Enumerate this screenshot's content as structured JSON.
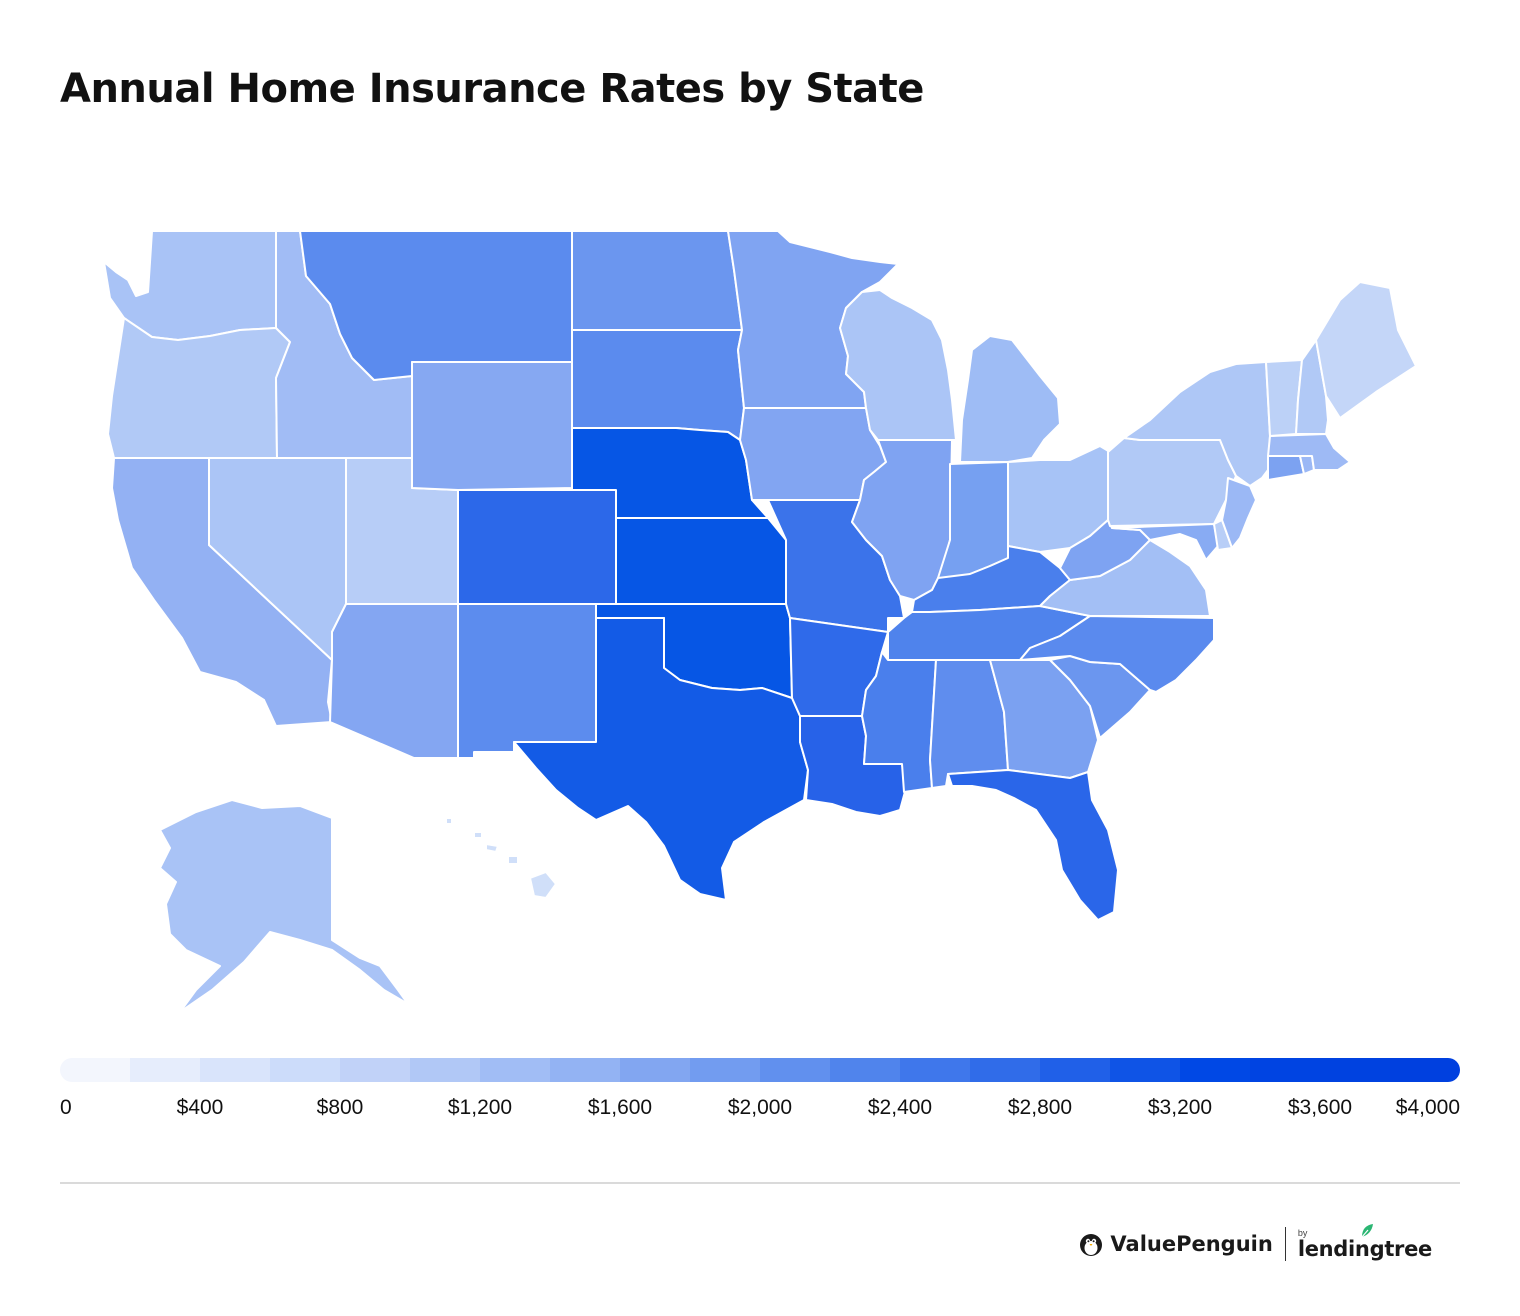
{
  "title": "Annual Home Insurance Rates by State",
  "legend": {
    "ticks": [
      "0",
      "$400",
      "$800",
      "$1,200",
      "$1,600",
      "$2,000",
      "$2,400",
      "$2,800",
      "$3,200",
      "$3,600",
      "$4,000"
    ],
    "colors": [
      "#f3f6fd",
      "#e6edfc",
      "#d9e4fb",
      "#ccdcfa",
      "#c1d2f8",
      "#b1c8f6",
      "#a1bdf5",
      "#93b3f3",
      "#82a6f1",
      "#729cf0",
      "#6190ee",
      "#5084ec",
      "#3f77eb",
      "#306ce9",
      "#2060e8",
      "#0f54e6",
      "#0048e5",
      "#0044e2",
      "#0042e0",
      "#0040df"
    ]
  },
  "map_colors": {
    "WA": "#a9c3f6",
    "OR": "#b1c9f6",
    "CA": "#93b1f3",
    "ID": "#a1bcf5",
    "NV": "#abc5f6",
    "UT": "#b7cdf7",
    "AZ": "#84a6f2",
    "MT": "#5b8bee",
    "WY": "#86a8f2",
    "CO": "#2c68e9",
    "NM": "#5c8cee",
    "ND": "#6b96ef",
    "SD": "#5b8bee",
    "NE": "#0656e5",
    "KS": "#0656e5",
    "OK": "#0656e5",
    "TX": "#135be6",
    "MN": "#80a4f2",
    "IA": "#82a5f2",
    "MO": "#3b73ea",
    "AR": "#2f6aea",
    "LA": "#2762e8",
    "WI": "#abc5f6",
    "IL": "#7fa3f2",
    "MI": "#9ebcf5",
    "IN": "#76a0f1",
    "OH": "#a7c3f6",
    "KY": "#4a7fec",
    "TN": "#4f83ec",
    "MS": "#4a7fec",
    "AL": "#5f8dee",
    "GA": "#7ba1f1",
    "FL": "#2a66e9",
    "SC": "#6b96ef",
    "NC": "#5a8aee",
    "VA": "#a3bff5",
    "WV": "#7ea3f2",
    "PA": "#b1c9f6",
    "NY": "#aec7f6",
    "MD": "#88abf3",
    "DE": "#b8cef7",
    "NJ": "#9bb8f5",
    "CT": "#7ca2f1",
    "RI": "#9bb8f5",
    "MA": "#9ebaf5",
    "VT": "#bcd1f7",
    "NH": "#b1c9f6",
    "ME": "#c4d6f8",
    "AK": "#a9c3f6",
    "HI": "#d0dff9"
  },
  "brand": {
    "valuepenguin": "ValuePenguin",
    "by": "by",
    "lendingtree": "lendingtree"
  }
}
